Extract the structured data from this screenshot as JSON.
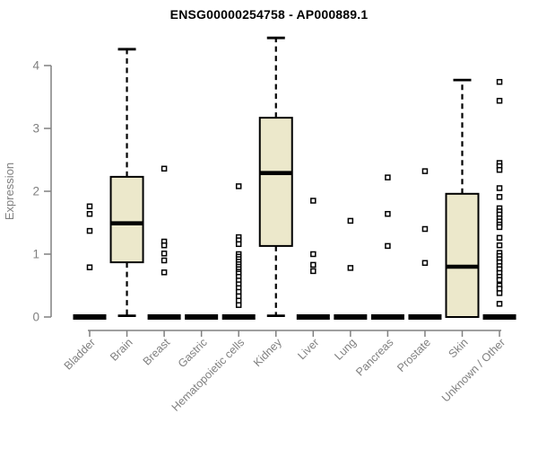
{
  "title": "ENSG00000254758 - AP000889.1",
  "chart_data": {
    "type": "boxplot",
    "title": "ENSG00000254758 - AP000889.1",
    "xlabel": "",
    "ylabel": "Expression",
    "ylim": [
      0,
      4.45
    ],
    "yticks": [
      0,
      1,
      2,
      3,
      4
    ],
    "grid": false,
    "legend": "none",
    "colors": {
      "box_fill": "#ECE8CB",
      "box_stroke": "#000000",
      "median": "#000000",
      "whisker": "#000000",
      "outlier_stroke": "#000000",
      "outlier_fill": "#ffffff",
      "axis": "#808080",
      "tick_label": "#808080",
      "title": "#000000",
      "background": "#ffffff"
    },
    "categories": [
      "Bladder",
      "Brain",
      "Breast",
      "Gastric",
      "Hematopoietic cells",
      "Kidney",
      "Liver",
      "Lung",
      "Pancreas",
      "Prostate",
      "Skin",
      "Unknown / Other"
    ],
    "series": [
      {
        "category": "Bladder",
        "whisker_low": 0,
        "q1": 0,
        "median": 0,
        "q3": 0,
        "whisker_high": 0,
        "outliers": [
          1.76,
          1.64,
          1.37,
          0.79
        ]
      },
      {
        "category": "Brain",
        "whisker_low": 0.02,
        "q1": 0.87,
        "median": 1.49,
        "q3": 2.23,
        "whisker_high": 4.26,
        "outliers": []
      },
      {
        "category": "Breast",
        "whisker_low": 0,
        "q1": 0,
        "median": 0,
        "q3": 0,
        "whisker_high": 0,
        "outliers": [
          2.36,
          1.2,
          1.14,
          1.01,
          0.9,
          0.71
        ]
      },
      {
        "category": "Gastric",
        "whisker_low": 0,
        "q1": 0,
        "median": 0,
        "q3": 0,
        "whisker_high": 0,
        "outliers": []
      },
      {
        "category": "Hematopoietic cells",
        "whisker_low": 0,
        "q1": 0,
        "median": 0,
        "q3": 0,
        "whisker_high": 0,
        "outliers": [
          2.08,
          1.27,
          1.22,
          1.16,
          1.0,
          0.96,
          0.92,
          0.88,
          0.84,
          0.8,
          0.76,
          0.72,
          0.69,
          0.64,
          0.58,
          0.52,
          0.46,
          0.4,
          0.33,
          0.26,
          0.19
        ]
      },
      {
        "category": "Kidney",
        "whisker_low": 0.02,
        "q1": 1.13,
        "median": 2.29,
        "q3": 3.17,
        "whisker_high": 4.44,
        "outliers": []
      },
      {
        "category": "Liver",
        "whisker_low": 0,
        "q1": 0,
        "median": 0,
        "q3": 0,
        "whisker_high": 0,
        "outliers": [
          1.85,
          1.0,
          0.83,
          0.73
        ]
      },
      {
        "category": "Lung",
        "whisker_low": 0,
        "q1": 0,
        "median": 0,
        "q3": 0,
        "whisker_high": 0,
        "outliers": [
          1.53,
          0.78
        ]
      },
      {
        "category": "Pancreas",
        "whisker_low": 0,
        "q1": 0,
        "median": 0,
        "q3": 0,
        "whisker_high": 0,
        "outliers": [
          2.22,
          1.64,
          1.13
        ]
      },
      {
        "category": "Prostate",
        "whisker_low": 0,
        "q1": 0,
        "median": 0,
        "q3": 0,
        "whisker_high": 0,
        "outliers": [
          2.32,
          1.4,
          0.86
        ]
      },
      {
        "category": "Skin",
        "whisker_low": 0,
        "q1": 0,
        "median": 0.8,
        "q3": 1.96,
        "whisker_high": 3.77,
        "outliers": []
      },
      {
        "category": "Unknown / Other",
        "whisker_low": 0,
        "q1": 0,
        "median": 0,
        "q3": 0,
        "whisker_high": 0,
        "outliers": [
          3.74,
          3.44,
          2.45,
          2.4,
          2.34,
          2.05,
          1.91,
          1.73,
          1.68,
          1.63,
          1.57,
          1.52,
          1.47,
          1.43,
          1.26,
          1.14,
          1.02,
          0.97,
          0.92,
          0.87,
          0.81,
          0.76,
          0.7,
          0.64,
          0.59,
          0.5,
          0.45,
          0.38,
          0.21
        ]
      }
    ]
  }
}
